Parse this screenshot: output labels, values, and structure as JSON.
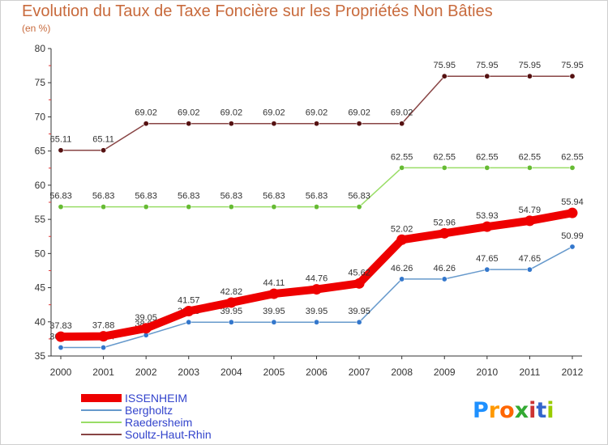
{
  "title": "Evolution du Taux de Taxe Foncière sur les Propriétés Non Bâties",
  "subtitle": "(en %)",
  "logo": {
    "text": "Proxiti",
    "letters": [
      "P",
      "r",
      "o",
      "x",
      "i",
      "t",
      "i"
    ],
    "colors": [
      "#1e90ff",
      "#ff9900",
      "#ff6600",
      "#33aa33",
      "#cc3333",
      "#3366cc",
      "#99cc00"
    ]
  },
  "chart_data": {
    "type": "line",
    "title": "Evolution du Taux de Taxe Foncière sur les Propriétés Non Bâties",
    "ylabel": "(en %)",
    "xlabel": "",
    "x": [
      "2000",
      "2001",
      "2002",
      "2003",
      "2004",
      "2005",
      "2006",
      "2007",
      "2008",
      "2009",
      "2010",
      "2011",
      "2012"
    ],
    "ylim": [
      35,
      80
    ],
    "yticks": [
      35,
      40,
      45,
      50,
      55,
      60,
      65,
      70,
      75,
      80
    ],
    "grid": false,
    "legend_position": "bottom-left",
    "series": [
      {
        "name": "ISSENHEIM",
        "color": "#ee0000",
        "emphasis": true,
        "values": [
          37.83,
          37.88,
          39.05,
          41.57,
          42.82,
          44.11,
          44.76,
          45.62,
          52.02,
          52.96,
          53.93,
          54.79,
          55.94
        ],
        "labels": [
          "37.83",
          "37.88",
          "39.05",
          "41.57",
          "42.82",
          "44.11",
          "44.76",
          "45.62",
          "52.02",
          "52.96",
          "53.93",
          "54.79",
          "55.94"
        ]
      },
      {
        "name": "Bergholtz",
        "color": "#6699cc",
        "marker": "#3377cc",
        "values": [
          36.24,
          36.24,
          38.05,
          39.95,
          39.95,
          39.95,
          39.95,
          39.95,
          46.26,
          46.26,
          47.65,
          47.65,
          50.99
        ],
        "labels": [
          "36.24",
          "36.24",
          "38.05",
          "39.95",
          "39.95",
          "39.95",
          "39.95",
          "39.95",
          "46.26",
          "46.26",
          "47.65",
          "47.65",
          "50.99"
        ]
      },
      {
        "name": "Raedersheim",
        "color": "#99dd66",
        "marker": "#66bb33",
        "values": [
          56.83,
          56.83,
          56.83,
          56.83,
          56.83,
          56.83,
          56.83,
          56.83,
          62.55,
          62.55,
          62.55,
          62.55,
          62.55
        ],
        "labels": [
          "56.83",
          "56.83",
          "56.83",
          "56.83",
          "56.83",
          "56.83",
          "56.83",
          "56.83",
          "62.55",
          "62.55",
          "62.55",
          "62.55",
          "62.55"
        ]
      },
      {
        "name": "Soultz-Haut-Rhin",
        "color": "#884444",
        "marker": "#551111",
        "values": [
          65.11,
          65.11,
          69.02,
          69.02,
          69.02,
          69.02,
          69.02,
          69.02,
          69.02,
          75.95,
          75.95,
          75.95,
          75.95
        ],
        "labels": [
          "65.11",
          "65.11",
          "69.02",
          "69.02",
          "69.02",
          "69.02",
          "69.02",
          "69.02",
          "69.02",
          "75.95",
          "75.95",
          "75.95",
          "75.95"
        ]
      }
    ]
  }
}
